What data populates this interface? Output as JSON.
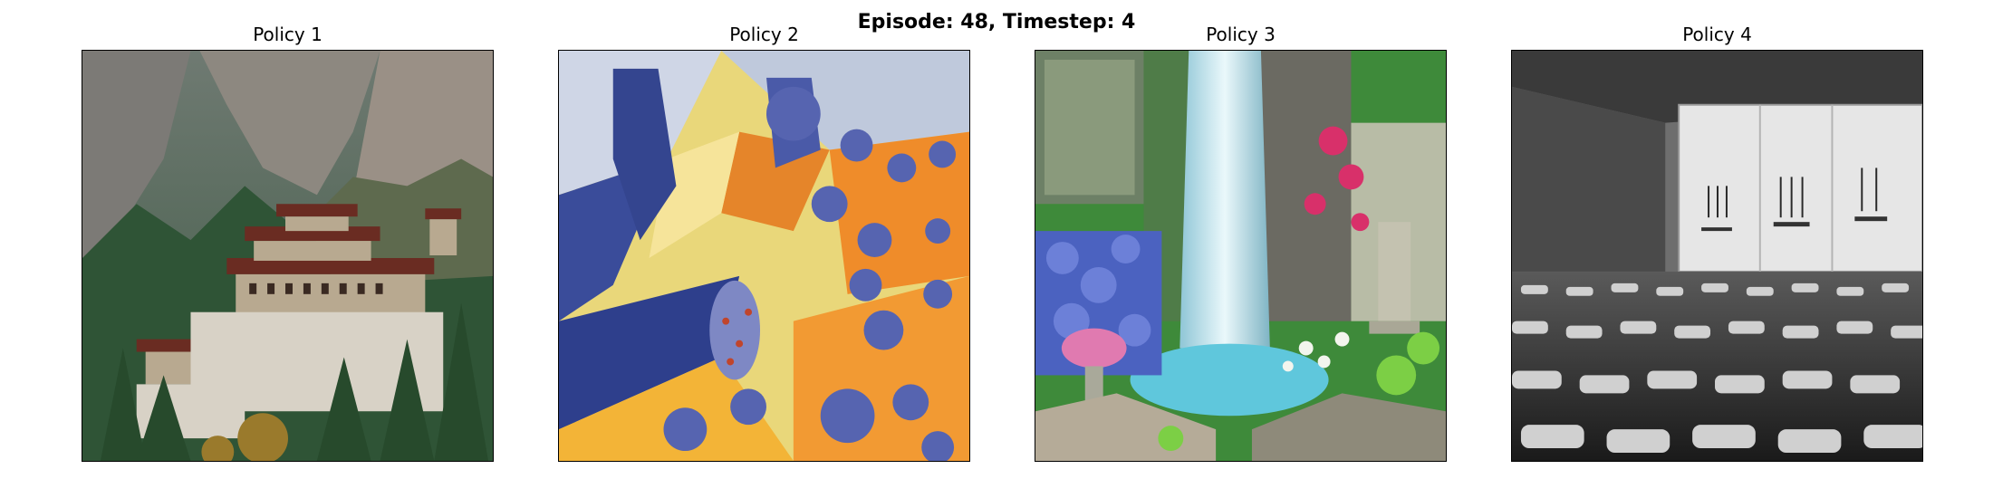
{
  "figure": {
    "suptitle": "Episode: 48, Timestep: 4"
  },
  "panels": [
    {
      "title": "Policy 1",
      "image": "cliffside-monastery-painting"
    },
    {
      "title": "Policy 2",
      "image": "cubist-abstract-painting"
    },
    {
      "title": "Policy 3",
      "image": "garden-waterfall-painting"
    },
    {
      "title": "Policy 4",
      "image": "black-and-white-auditorium-photo"
    }
  ]
}
